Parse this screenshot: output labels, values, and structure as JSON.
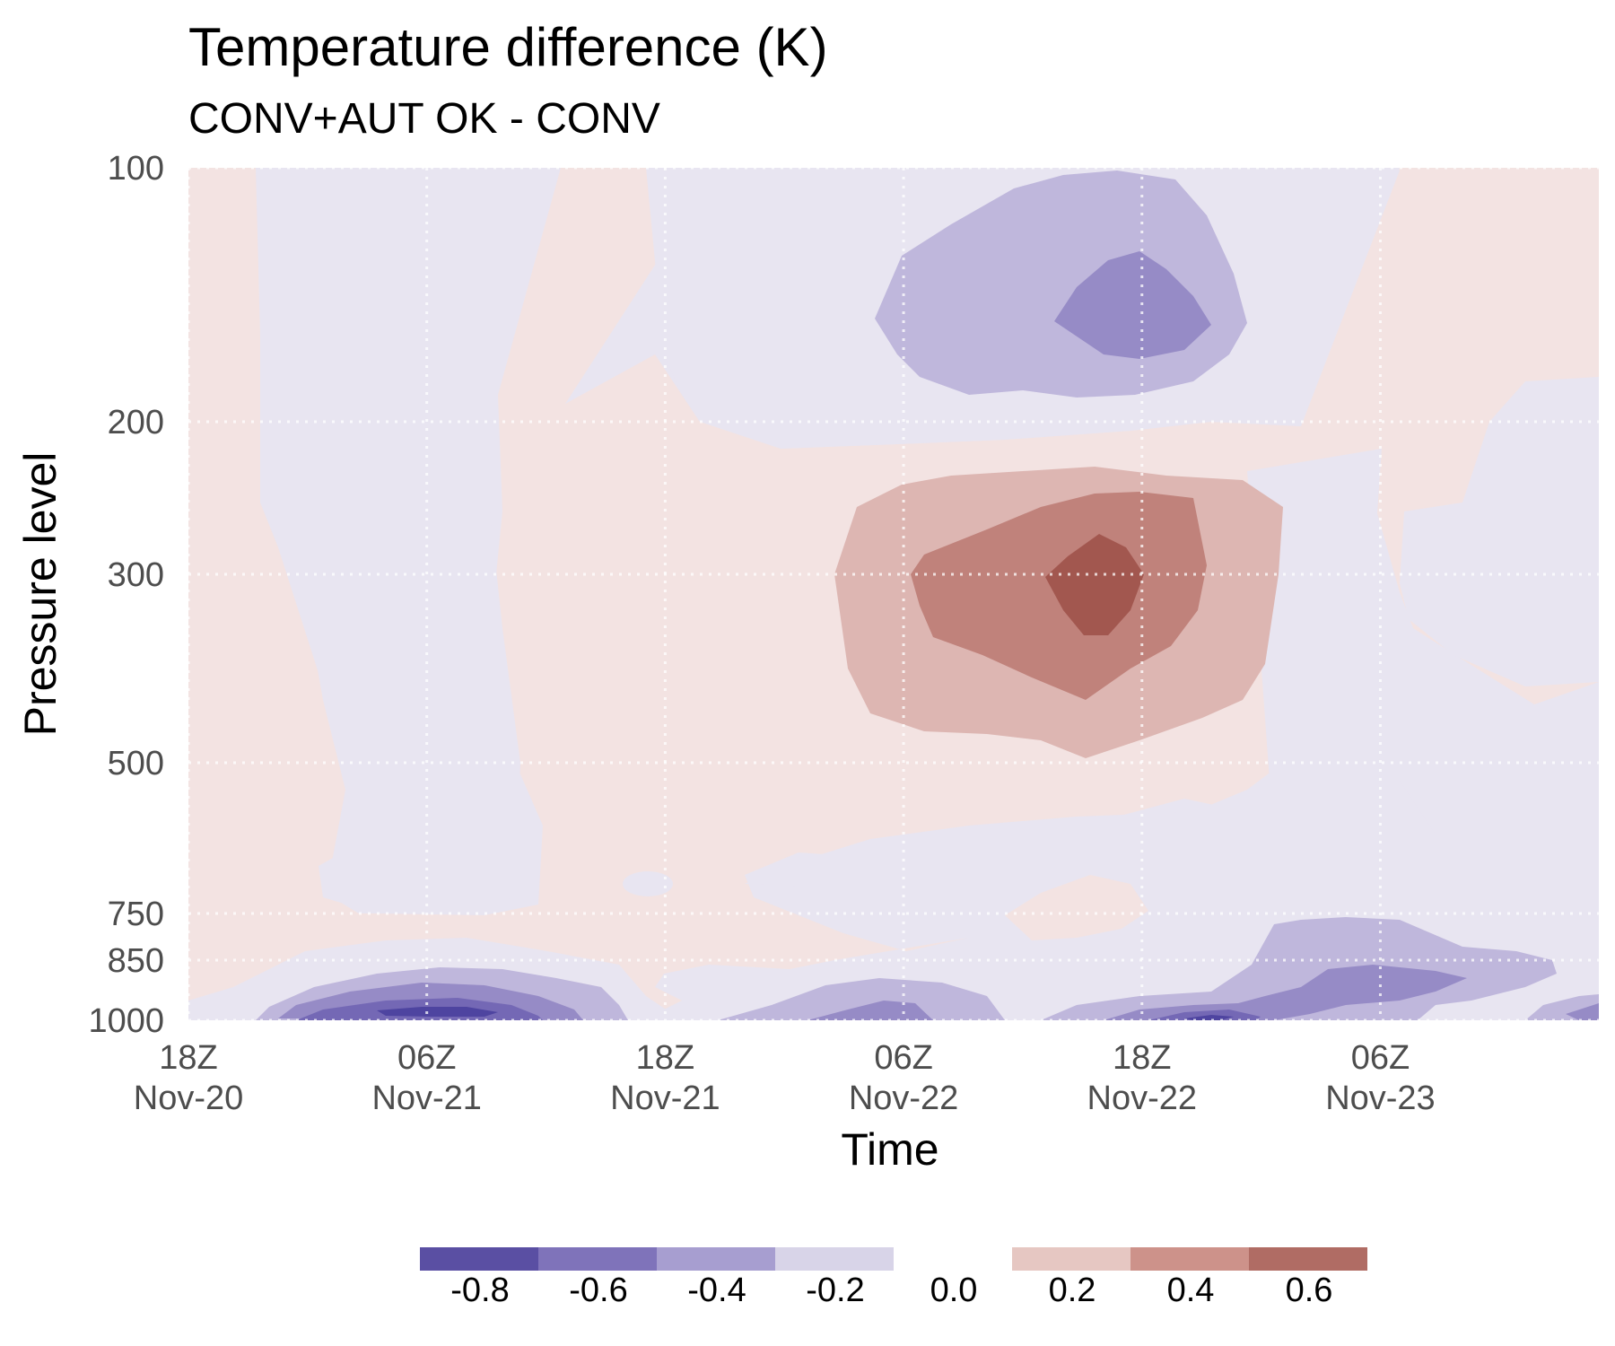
{
  "chart_data": {
    "type": "heatmap",
    "title": "Temperature difference (K)",
    "subtitle": "CONV+AUT OK - CONV",
    "xlabel": "Time",
    "ylabel": "Pressure level",
    "x_ticks": [
      {
        "hour": 0,
        "line1": "18Z",
        "line2": "Nov-20"
      },
      {
        "hour": 12,
        "line1": "06Z",
        "line2": "Nov-21"
      },
      {
        "hour": 24,
        "line1": "18Z",
        "line2": "Nov-21"
      },
      {
        "hour": 36,
        "line1": "06Z",
        "line2": "Nov-22"
      },
      {
        "hour": 48,
        "line1": "18Z",
        "line2": "Nov-22"
      },
      {
        "hour": 60,
        "line1": "06Z",
        "line2": "Nov-23"
      }
    ],
    "xlim": [
      0,
      71
    ],
    "y_ticks": [
      100,
      200,
      300,
      500,
      750,
      850,
      1000
    ],
    "ylim": [
      100,
      1000
    ],
    "y_scale": "reversed pressure",
    "grid": true,
    "legend_position": "bottom",
    "color_scale": {
      "levels": [
        -0.8,
        -0.6,
        -0.4,
        -0.2,
        0.0,
        0.2,
        0.4,
        0.6
      ],
      "negative_colors": [
        "#5a4fa3",
        "#7f73ba",
        "#a79ed0",
        "#d8d4e8"
      ],
      "positive_colors": [
        "#e6c7c2",
        "#cd928a",
        "#b06c64"
      ]
    },
    "fill_bins": [
      {
        "range": "(-0.2, 0.0]",
        "color": "#e8e5f1"
      },
      {
        "range": "(0.0, 0.2]",
        "color": "#f3e3e2"
      },
      {
        "range": "(-0.4, -0.2]",
        "color": "#bfb7dc"
      },
      {
        "range": "(-0.6, -0.4]",
        "color": "#968bc6"
      },
      {
        "range": "(-0.8, -0.6]",
        "color": "#7468b5"
      },
      {
        "range": "(-1.0, -0.8]",
        "color": "#4e44a0"
      },
      {
        "range": "(0.2, 0.4]",
        "color": "#ddb6b2"
      },
      {
        "range": "(0.4, 0.6]",
        "color": "#c0827b"
      },
      {
        "range": "(0.6, 0.8]",
        "color": "#a2574f"
      }
    ]
  }
}
